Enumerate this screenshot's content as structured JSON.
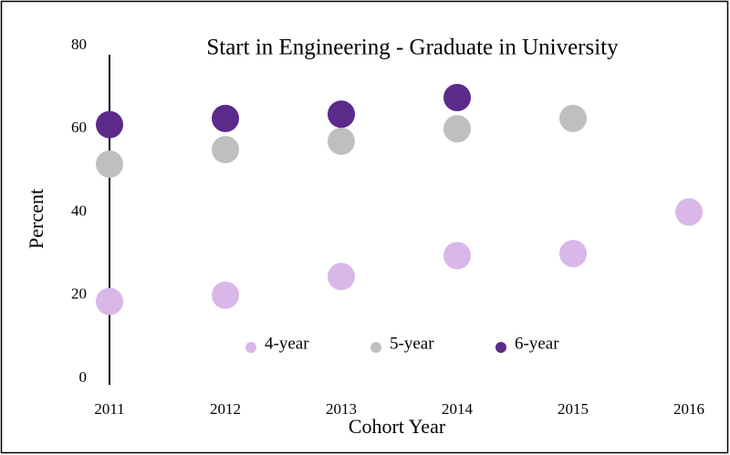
{
  "chart_data": {
    "type": "scatter",
    "title": "Start in Engineering - Graduate in University",
    "x_label": "Cohort Year",
    "y_label": "Percent",
    "x": [
      2011,
      2012,
      2013,
      2014,
      2015,
      2016
    ],
    "series": [
      {
        "name": "4-year",
        "color": "#d9b7e8",
        "values": [
          18.5,
          20,
          24.5,
          29.5,
          30,
          40
        ]
      },
      {
        "name": "5-year",
        "color": "#bfbfbf",
        "values": [
          51.5,
          55,
          57,
          60,
          62.5,
          null
        ]
      },
      {
        "name": "6-year",
        "color": "#5b2a8a",
        "values": [
          61,
          62.5,
          63.5,
          67.5,
          null,
          null
        ]
      }
    ],
    "xlim": [
      2011,
      2016
    ],
    "xticks": [
      2011,
      2012,
      2013,
      2014,
      2015,
      2016
    ],
    "ylim": [
      0,
      80
    ],
    "yticks": [
      0,
      20,
      40,
      60,
      80
    ],
    "grid": false,
    "legend": "bottom"
  }
}
